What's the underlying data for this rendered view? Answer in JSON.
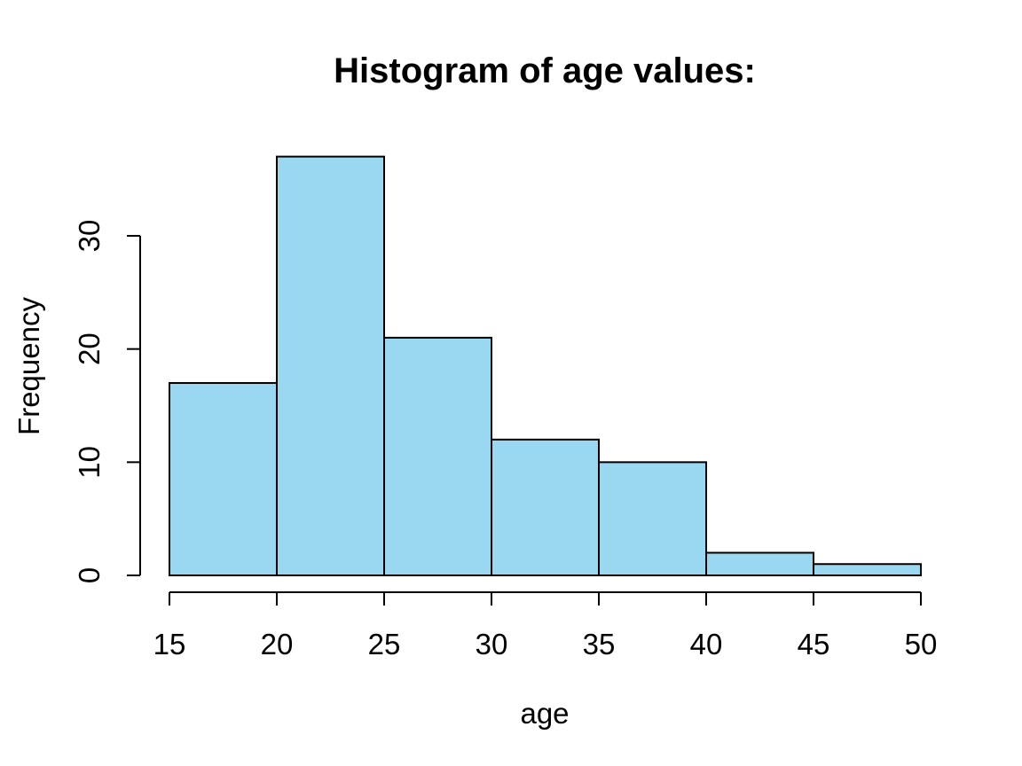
{
  "page": {
    "background_color": "#FFFFFF",
    "text_color": "#000000"
  },
  "chart_data": {
    "type": "bar",
    "subtype": "histogram",
    "title": "Histogram of age values:",
    "xlabel": "age",
    "ylabel": "Frequency",
    "bin_breaks": [
      15,
      20,
      25,
      30,
      35,
      40,
      45,
      50
    ],
    "bin_labels": [
      "15-20",
      "20-25",
      "25-30",
      "30-35",
      "35-40",
      "40-45",
      "45-50"
    ],
    "counts": [
      17,
      37,
      21,
      12,
      10,
      2,
      1
    ],
    "x_ticks": [
      15,
      20,
      25,
      30,
      35,
      40,
      45,
      50
    ],
    "y_ticks": [
      0,
      10,
      20,
      30
    ],
    "xlim": [
      15,
      50
    ],
    "ylim": [
      0,
      37
    ],
    "grid": false,
    "legend": "none",
    "bar_fill": "#99D8F0",
    "bar_stroke": "#000000",
    "axis_color": "#000000",
    "background": "#FFFFFF"
  }
}
